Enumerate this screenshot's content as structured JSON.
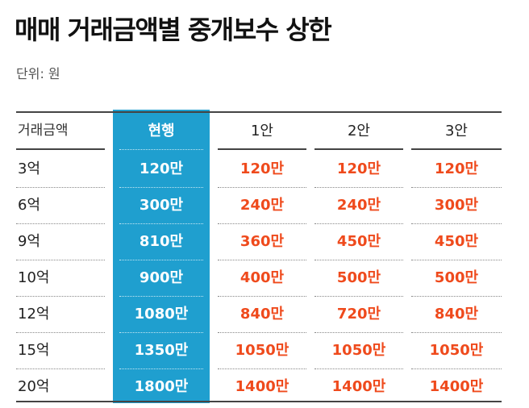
{
  "title": "매매 거래금액별 중개보수 상한",
  "unit_note": "단위: 원",
  "colors": {
    "highlight": "#1f9fcf",
    "accent": "#ef4a1c",
    "text": "#222222"
  },
  "chart_data": {
    "type": "table",
    "columns": [
      "거래금액",
      "현행",
      "1안",
      "2안",
      "3안"
    ],
    "rows": [
      [
        "3억",
        "120만",
        "120만",
        "120만",
        "120만"
      ],
      [
        "6억",
        "300만",
        "240만",
        "240만",
        "300만"
      ],
      [
        "9억",
        "810만",
        "360만",
        "450만",
        "450만"
      ],
      [
        "10억",
        "900만",
        "400만",
        "500만",
        "500만"
      ],
      [
        "12억",
        "1080만",
        "840만",
        "720만",
        "840만"
      ],
      [
        "15억",
        "1350만",
        "1050만",
        "1050만",
        "1050만"
      ],
      [
        "20억",
        "1800만",
        "1400만",
        "1400만",
        "1400만"
      ]
    ]
  }
}
